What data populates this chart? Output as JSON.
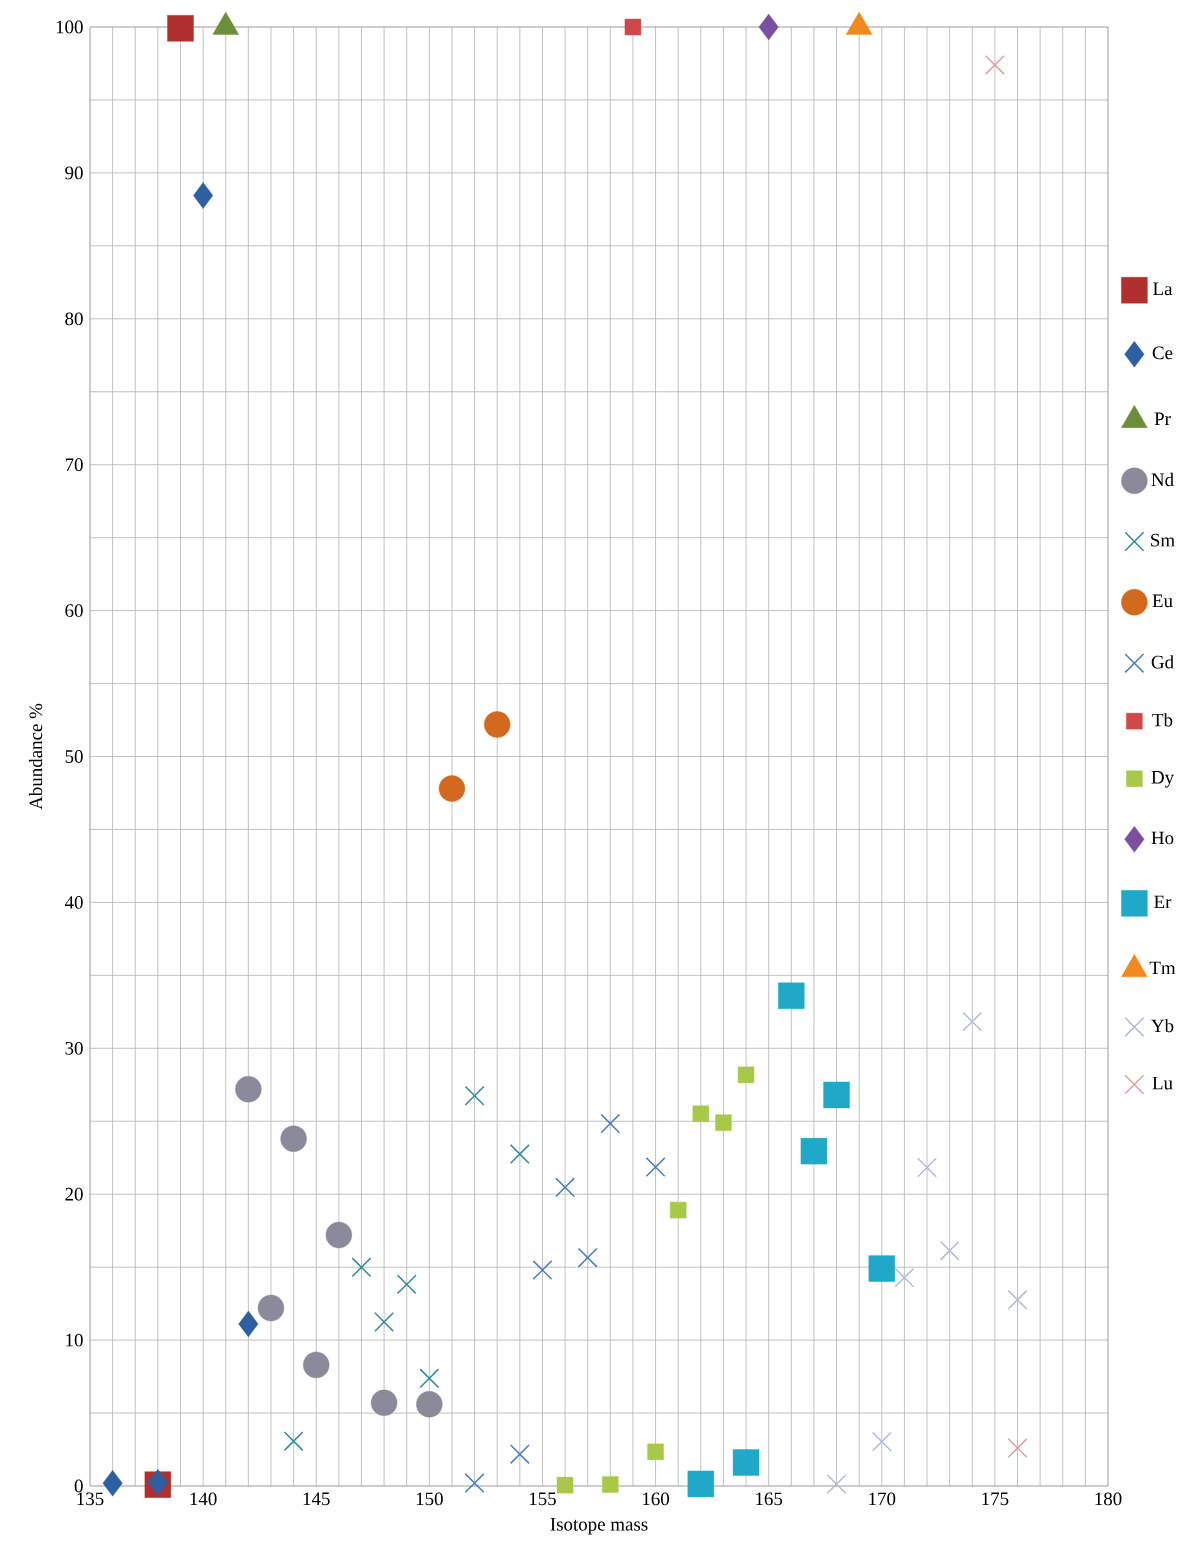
{
  "chart_data": {
    "type": "scatter",
    "xlabel": "Isotope mass",
    "ylabel": "Abundance %",
    "xlim": [
      135,
      180
    ],
    "ylim": [
      0,
      100
    ],
    "xticks": [
      135,
      140,
      145,
      150,
      155,
      160,
      165,
      170,
      175,
      180
    ],
    "yticks": [
      0,
      10,
      20,
      30,
      40,
      50,
      60,
      70,
      80,
      90,
      100
    ],
    "grid": true,
    "legend": "right",
    "series": [
      {
        "name": "La",
        "color": "#b03030",
        "marker": "square",
        "x": [
          138,
          139
        ],
        "values": [
          0.09,
          99.91
        ]
      },
      {
        "name": "Ce",
        "color": "#2e5fa0",
        "marker": "diamond",
        "x": [
          136,
          138,
          140,
          142
        ],
        "values": [
          0.19,
          0.25,
          88.45,
          11.11
        ]
      },
      {
        "name": "Pr",
        "color": "#6b8e3a",
        "marker": "triangle",
        "x": [
          141
        ],
        "values": [
          100
        ]
      },
      {
        "name": "Nd",
        "color": "#8a8a9a",
        "marker": "circle",
        "x": [
          142,
          143,
          144,
          145,
          146,
          148,
          150
        ],
        "values": [
          27.2,
          12.2,
          23.8,
          8.3,
          17.2,
          5.7,
          5.6
        ]
      },
      {
        "name": "Sm",
        "color": "#2e8b9a",
        "marker": "cross",
        "x": [
          144,
          147,
          148,
          149,
          150,
          152,
          154
        ],
        "values": [
          3.07,
          14.99,
          11.24,
          13.82,
          7.38,
          26.75,
          22.75
        ]
      },
      {
        "name": "Eu",
        "color": "#d2691e",
        "marker": "circle",
        "x": [
          151,
          153
        ],
        "values": [
          47.8,
          52.2
        ]
      },
      {
        "name": "Gd",
        "color": "#4a7fc0",
        "marker": "cross",
        "x": [
          152,
          154,
          155,
          156,
          157,
          158,
          160
        ],
        "values": [
          0.2,
          2.18,
          14.8,
          20.47,
          15.65,
          24.84,
          21.86
        ]
      },
      {
        "name": "Tb",
        "color": "#d04848",
        "marker": "square",
        "x": [
          159
        ],
        "values": [
          100
        ]
      },
      {
        "name": "Dy",
        "color": "#a8c848",
        "marker": "square",
        "x": [
          156,
          158,
          160,
          161,
          162,
          163,
          164
        ],
        "values": [
          0.06,
          0.1,
          2.34,
          18.91,
          25.51,
          24.9,
          28.18
        ]
      },
      {
        "name": "Ho",
        "color": "#7a4fa0",
        "marker": "diamond",
        "x": [
          165
        ],
        "values": [
          100
        ]
      },
      {
        "name": "Er",
        "color": "#20a8c8",
        "marker": "square",
        "x": [
          162,
          164,
          166,
          167,
          168,
          170
        ],
        "values": [
          0.14,
          1.61,
          33.6,
          22.95,
          26.8,
          14.9
        ]
      },
      {
        "name": "Tm",
        "color": "#f08a20",
        "marker": "triangle",
        "x": [
          169
        ],
        "values": [
          100
        ]
      },
      {
        "name": "Yb",
        "color": "#b0bcd8",
        "marker": "cross",
        "x": [
          168,
          170,
          171,
          172,
          173,
          174,
          176
        ],
        "values": [
          0.13,
          3.04,
          14.28,
          21.83,
          16.13,
          31.83,
          12.76
        ]
      },
      {
        "name": "Lu",
        "color": "#e0a0a0",
        "marker": "cross",
        "x": [
          175,
          176
        ],
        "values": [
          97.4,
          2.6
        ]
      }
    ]
  }
}
